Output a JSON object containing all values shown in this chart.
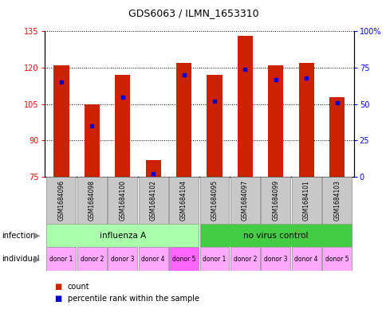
{
  "title": "GDS6063 / ILMN_1653310",
  "samples": [
    "GSM1684096",
    "GSM1684098",
    "GSM1684100",
    "GSM1684102",
    "GSM1684104",
    "GSM1684095",
    "GSM1684097",
    "GSM1684099",
    "GSM1684101",
    "GSM1684103"
  ],
  "counts": [
    121,
    105,
    117,
    82,
    122,
    117,
    133,
    121,
    122,
    108
  ],
  "percentile_ranks": [
    65,
    35,
    55,
    2,
    70,
    52,
    74,
    67,
    68,
    51
  ],
  "ylim_left": [
    75,
    135
  ],
  "ylim_right": [
    0,
    100
  ],
  "yticks_left": [
    75,
    90,
    105,
    120,
    135
  ],
  "yticks_right": [
    0,
    25,
    50,
    75,
    100
  ],
  "infection_groups": [
    {
      "label": "influenza A",
      "start": 0,
      "end": 5,
      "color": "#AAFFAA"
    },
    {
      "label": "no virus control",
      "start": 5,
      "end": 10,
      "color": "#44CC44"
    }
  ],
  "individuals": [
    "donor 1",
    "donor 2",
    "donor 3",
    "donor 4",
    "donor 5",
    "donor 1",
    "donor 2",
    "donor 3",
    "donor 4",
    "donor 5"
  ],
  "individual_colors": [
    "#FFAAFF",
    "#FFAAFF",
    "#FFAAFF",
    "#FFAAFF",
    "#FF66FF",
    "#FFAAFF",
    "#FFAAFF",
    "#FFAAFF",
    "#FFAAFF",
    "#FFAAFF"
  ],
  "bar_color": "#CC2200",
  "percentile_color": "#0000CC",
  "bar_width": 0.5,
  "base_value": 75
}
